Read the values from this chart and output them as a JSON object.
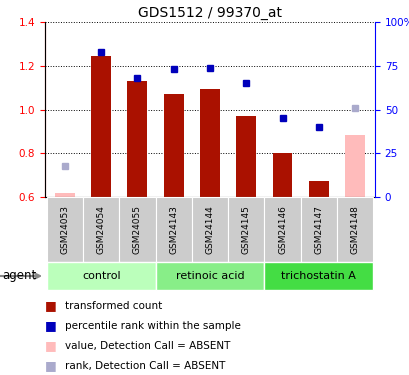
{
  "title": "GDS1512 / 99370_at",
  "samples": [
    "GSM24053",
    "GSM24054",
    "GSM24055",
    "GSM24143",
    "GSM24144",
    "GSM24145",
    "GSM24146",
    "GSM24147",
    "GSM24148"
  ],
  "bar_values": [
    0.62,
    1.245,
    1.13,
    1.07,
    1.095,
    0.972,
    0.802,
    0.673,
    0.885
  ],
  "bar_absent": [
    true,
    false,
    false,
    false,
    false,
    false,
    false,
    false,
    true
  ],
  "rank_values_pct": [
    18,
    83,
    68,
    73,
    74,
    65,
    45,
    40,
    51
  ],
  "rank_absent": [
    true,
    false,
    false,
    false,
    false,
    false,
    false,
    false,
    true
  ],
  "ylim_left": [
    0.6,
    1.4
  ],
  "ylim_right": [
    0,
    100
  ],
  "right_ticks": [
    0,
    25,
    50,
    75,
    100
  ],
  "right_tick_labels": [
    "0",
    "25",
    "50",
    "75",
    "100%"
  ],
  "left_ticks": [
    0.6,
    0.8,
    1.0,
    1.2,
    1.4
  ],
  "groups": [
    {
      "label": "control",
      "indices": [
        0,
        1,
        2
      ],
      "color": "#bbffbb"
    },
    {
      "label": "retinoic acid",
      "indices": [
        3,
        4,
        5
      ],
      "color": "#88ee88"
    },
    {
      "label": "trichostatin A",
      "indices": [
        6,
        7,
        8
      ],
      "color": "#44dd44"
    }
  ],
  "bar_color_present": "#aa1100",
  "bar_color_absent": "#ffbbbb",
  "rank_color_present": "#0000bb",
  "rank_color_absent": "#aaaacc",
  "bar_width": 0.55,
  "background_color": "#ffffff"
}
